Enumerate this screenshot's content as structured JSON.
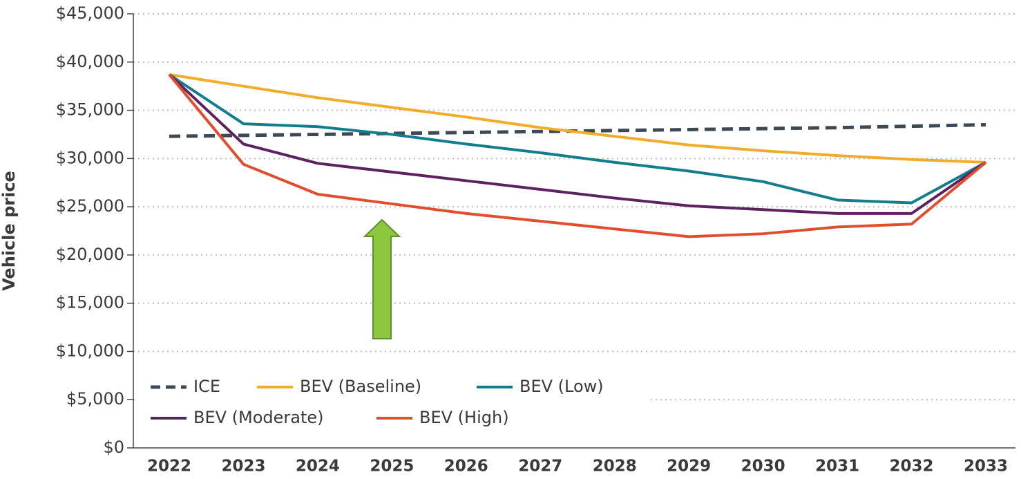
{
  "chart_data": {
    "type": "line",
    "y_label": "Vehicle price",
    "x": [
      2022,
      2023,
      2024,
      2025,
      2026,
      2027,
      2028,
      2029,
      2030,
      2031,
      2032,
      2033
    ],
    "xlim": [
      2022,
      2033
    ],
    "ylim": [
      0,
      45000
    ],
    "yticks": [
      {
        "value": 0,
        "label": "$0"
      },
      {
        "value": 5000,
        "label": "$5,000"
      },
      {
        "value": 10000,
        "label": "$10,000"
      },
      {
        "value": 15000,
        "label": "$15,000"
      },
      {
        "value": 20000,
        "label": "$20,000"
      },
      {
        "value": 25000,
        "label": "$25,000"
      },
      {
        "value": 30000,
        "label": "$30,000"
      },
      {
        "value": 35000,
        "label": "$35,000"
      },
      {
        "value": 40000,
        "label": "$40,000"
      },
      {
        "value": 45000,
        "label": "$45,000"
      }
    ],
    "grid": true,
    "legend": "lower left",
    "series": [
      {
        "name": "ICE",
        "color": "#3d4a54",
        "dashed": true,
        "values": [
          32300,
          32400,
          32500,
          32600,
          32700,
          32800,
          32900,
          33000,
          33100,
          33200,
          33350,
          33500
        ]
      },
      {
        "name": "BEV (Baseline)",
        "color": "#f0ac2a",
        "values": [
          38700,
          37500,
          36300,
          35300,
          34300,
          33200,
          32300,
          31400,
          30800,
          30300,
          29900,
          29600
        ]
      },
      {
        "name": "BEV (Low)",
        "color": "#127d8c",
        "values": [
          38700,
          33600,
          33300,
          32500,
          31500,
          30600,
          29600,
          28700,
          27600,
          25700,
          25400,
          29600
        ]
      },
      {
        "name": "BEV (Moderate)",
        "color": "#5e2160",
        "values": [
          38700,
          31500,
          29500,
          28600,
          27700,
          26800,
          25900,
          25100,
          24700,
          24300,
          24300,
          29600
        ]
      },
      {
        "name": "BEV (High)",
        "color": "#e04e2e",
        "values": [
          38700,
          29400,
          26300,
          25300,
          24300,
          23500,
          22700,
          21900,
          22200,
          22900,
          23200,
          29600
        ]
      }
    ]
  }
}
